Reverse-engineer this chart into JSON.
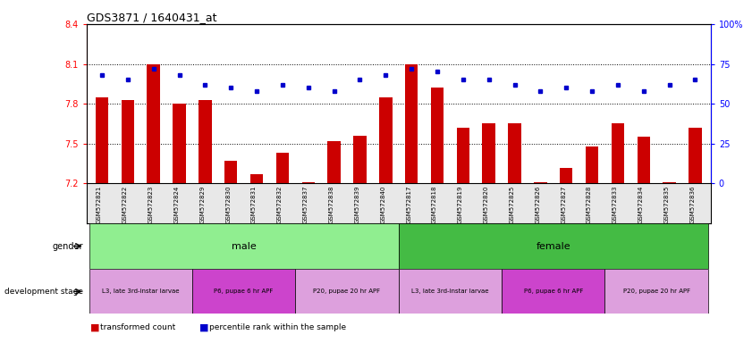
{
  "title": "GDS3871 / 1640431_at",
  "samples": [
    "GSM572821",
    "GSM572822",
    "GSM572823",
    "GSM572824",
    "GSM572829",
    "GSM572830",
    "GSM572831",
    "GSM572832",
    "GSM572837",
    "GSM572838",
    "GSM572839",
    "GSM572840",
    "GSM572817",
    "GSM572818",
    "GSM572819",
    "GSM572820",
    "GSM572825",
    "GSM572826",
    "GSM572827",
    "GSM572828",
    "GSM572833",
    "GSM572834",
    "GSM572835",
    "GSM572836"
  ],
  "transformed_count": [
    7.85,
    7.83,
    8.1,
    7.8,
    7.83,
    7.37,
    7.27,
    7.43,
    7.21,
    7.52,
    7.56,
    7.85,
    8.1,
    7.92,
    7.62,
    7.65,
    7.65,
    7.21,
    7.32,
    7.48,
    7.65,
    7.55,
    7.21,
    7.62
  ],
  "percentile_rank": [
    68,
    65,
    72,
    68,
    62,
    60,
    58,
    62,
    60,
    58,
    65,
    68,
    72,
    70,
    65,
    65,
    62,
    58,
    60,
    58,
    62,
    58,
    62,
    65
  ],
  "ylim_left": [
    7.2,
    8.4
  ],
  "ylim_right": [
    0,
    100
  ],
  "yticks_left": [
    7.2,
    7.5,
    7.8,
    8.1,
    8.4
  ],
  "yticks_right": [
    0,
    25,
    50,
    75,
    100
  ],
  "ytick_labels_right": [
    "0",
    "25",
    "50",
    "75",
    "100%"
  ],
  "bar_color": "#cc0000",
  "dot_color": "#0000cc",
  "gender_male_color": "#90ee90",
  "gender_female_color": "#44bb44",
  "dev_l3_color": "#dda0dd",
  "dev_p6_color": "#cc44cc",
  "dev_p20_color": "#dda0dd",
  "gender": {
    "male": [
      0,
      11
    ],
    "female": [
      12,
      23
    ]
  },
  "dev_stages": [
    {
      "label": "L3, late 3rd-instar larvae",
      "start": 0,
      "end": 3,
      "color": "#dda0dd"
    },
    {
      "label": "P6, pupae 6 hr APF",
      "start": 4,
      "end": 7,
      "color": "#cc44cc"
    },
    {
      "label": "P20, pupae 20 hr APF",
      "start": 8,
      "end": 11,
      "color": "#dda0dd"
    },
    {
      "label": "L3, late 3rd-instar larvae",
      "start": 12,
      "end": 15,
      "color": "#dda0dd"
    },
    {
      "label": "P6, pupae 6 hr APF",
      "start": 16,
      "end": 19,
      "color": "#cc44cc"
    },
    {
      "label": "P20, pupae 20 hr APF",
      "start": 20,
      "end": 23,
      "color": "#dda0dd"
    }
  ]
}
